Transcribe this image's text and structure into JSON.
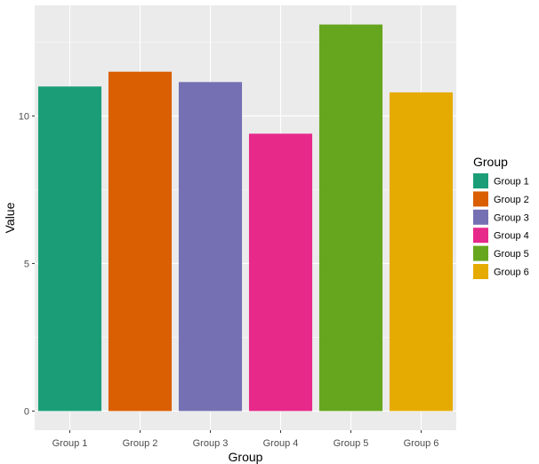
{
  "chart_data": {
    "type": "bar",
    "categories": [
      "Group 1",
      "Group 2",
      "Group 3",
      "Group 4",
      "Group 5",
      "Group 6"
    ],
    "values": [
      11.0,
      11.5,
      11.15,
      9.4,
      13.1,
      10.8
    ],
    "colors": [
      "#1B9E77",
      "#D95F02",
      "#7570B3",
      "#E7298A",
      "#66A61E",
      "#E6AB02"
    ],
    "xlabel": "Group",
    "ylabel": "Value",
    "yticks": [
      0,
      5,
      10
    ],
    "ylim": [
      -0.65,
      13.75
    ],
    "grid": true,
    "legend": {
      "title": "Group",
      "position": "right",
      "entries": [
        "Group 1",
        "Group 2",
        "Group 3",
        "Group 4",
        "Group 5",
        "Group 6"
      ]
    }
  }
}
